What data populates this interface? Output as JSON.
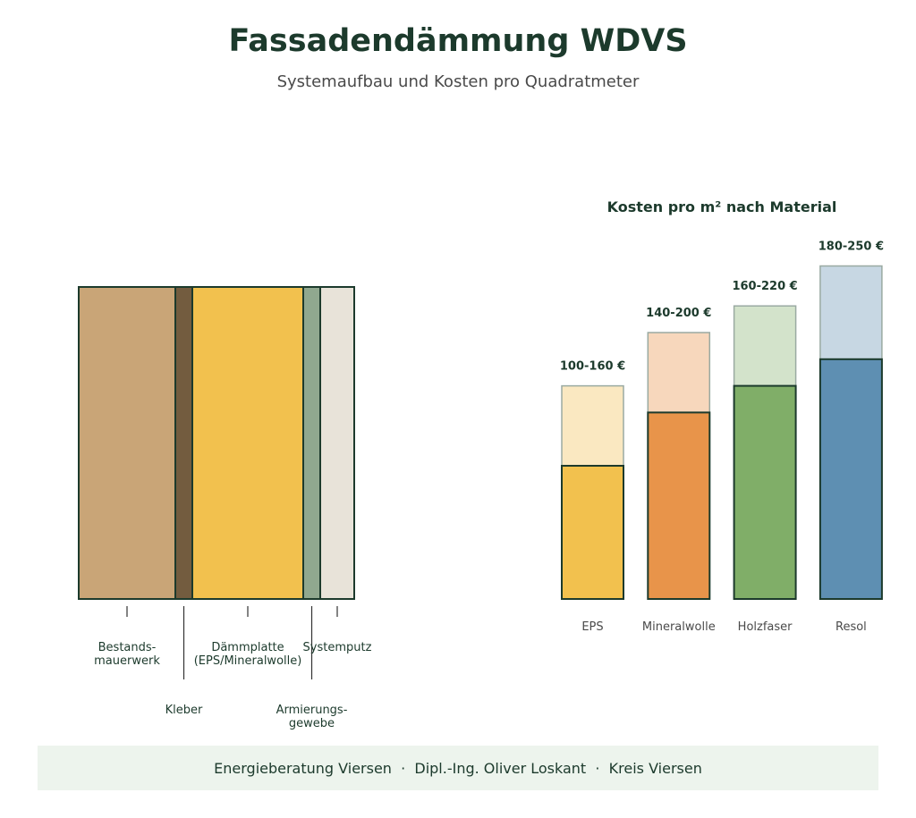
{
  "page": {
    "title": "Fassadendämmung WDVS",
    "subtitle": "Systemaufbau und Kosten pro Quadratmeter",
    "footer": "Energieberatung Viersen  ·  Dipl.-Ing. Oliver Loskant  ·  Kreis Viersen"
  },
  "colors": {
    "dark": "#1c3a2c",
    "label_gray": "#4a4a4a",
    "footer_bg": "#edf4ed"
  },
  "layers": [
    {
      "name": "Bestands-\nmauerwerk",
      "color": "#c9a577"
    },
    {
      "name": "Kleber",
      "color": "#735c3f"
    },
    {
      "name": "Dämmplatte\n(EPS/Mineralwolle)",
      "color": "#f2c14e"
    },
    {
      "name": "Armierungs-\ngewebe",
      "color": "#90a88f"
    },
    {
      "name": "Systemputz",
      "color": "#e8e3d9"
    }
  ],
  "chart_data": {
    "type": "bar",
    "title": "Kosten pro m² nach Material",
    "categories": [
      "EPS",
      "Mineralwolle",
      "Holzfaser",
      "Resol"
    ],
    "series": [
      {
        "values": [
          100,
          140,
          160,
          180
        ]
      },
      {
        "values": [
          160,
          200,
          220,
          250
        ]
      }
    ],
    "value_labels": [
      "100-160 €",
      "140-200 €",
      "160-220 €",
      "180-250 €"
    ],
    "colors": [
      "#f2c14e",
      "#e8944a",
      "#80ae68",
      "#5e8fb2"
    ],
    "light_colors": [
      "#fae8c1",
      "#f7d7bc",
      "#d3e3cb",
      "#c7d7e3"
    ],
    "ylim": [
      0,
      250
    ],
    "xlabel": "",
    "ylabel": ""
  }
}
